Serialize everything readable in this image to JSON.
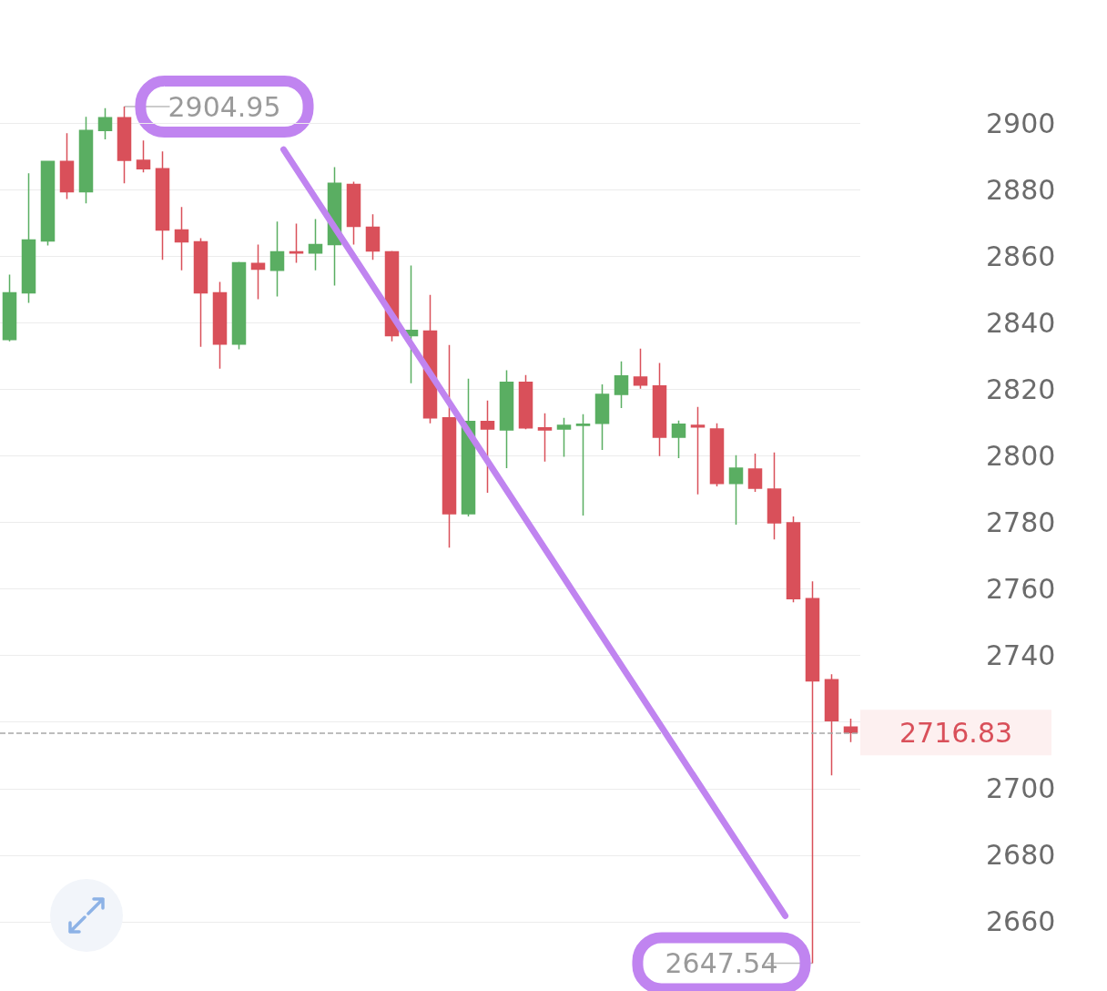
{
  "chart_data": {
    "type": "candlestick",
    "categories": [
      null,
      null,
      null,
      null,
      null,
      null,
      null,
      null,
      null,
      null,
      null,
      null,
      null,
      null,
      null,
      null,
      null,
      null,
      null,
      null,
      null,
      null,
      null,
      null,
      null,
      null,
      null,
      null,
      null,
      null,
      null,
      null,
      null,
      null,
      null,
      null,
      null,
      null,
      null,
      null,
      null,
      null,
      null,
      null,
      null
    ],
    "ohlc": [
      [
        2835.0,
        2854.5,
        2834.4,
        2849.0
      ],
      [
        2849.0,
        2884.9,
        2846.0,
        2864.9
      ],
      [
        2864.6,
        2888.5,
        2863.2,
        2888.5
      ],
      [
        2888.5,
        2897.0,
        2877.2,
        2879.4
      ],
      [
        2879.4,
        2901.9,
        2875.9,
        2897.8
      ],
      [
        2897.8,
        2904.5,
        2895.1,
        2901.6
      ],
      [
        2901.6,
        2904.95,
        2881.9,
        2888.8
      ],
      [
        2888.8,
        2894.8,
        2885.2,
        2886.3
      ],
      [
        2886.3,
        2891.5,
        2858.9,
        2867.9
      ],
      [
        2867.9,
        2874.8,
        2855.8,
        2864.3
      ],
      [
        2864.3,
        2865.4,
        2832.8,
        2849.0
      ],
      [
        2849.0,
        2852.3,
        2826.2,
        2833.6
      ],
      [
        2833.6,
        2858.3,
        2832.0,
        2858.0
      ],
      [
        2857.8,
        2863.5,
        2847.1,
        2856.1
      ],
      [
        2855.8,
        2870.4,
        2847.9,
        2861.3
      ],
      [
        2861.3,
        2869.8,
        2858.0,
        2861.0
      ],
      [
        2861.0,
        2871.2,
        2855.8,
        2863.5
      ],
      [
        2863.5,
        2886.8,
        2851.2,
        2881.9
      ],
      [
        2881.6,
        2882.4,
        2863.5,
        2869.0
      ],
      [
        2868.7,
        2872.6,
        2858.9,
        2861.6
      ],
      [
        2861.3,
        2861.6,
        2834.4,
        2836.1
      ],
      [
        2836.1,
        2857.2,
        2821.8,
        2837.7
      ],
      [
        2837.5,
        2848.4,
        2809.8,
        2811.4
      ],
      [
        2811.4,
        2833.3,
        2772.4,
        2782.6
      ],
      [
        2782.6,
        2823.2,
        2781.8,
        2810.3
      ],
      [
        2810.3,
        2816.6,
        2788.9,
        2808.1
      ],
      [
        2807.8,
        2825.7,
        2796.3,
        2822.1
      ],
      [
        2822.1,
        2824.3,
        2808.0,
        2808.4
      ],
      [
        2808.4,
        2812.8,
        2798.3,
        2807.8
      ],
      [
        2808.1,
        2811.4,
        2799.7,
        2809.2
      ],
      [
        2809.2,
        2812.5,
        2782.1,
        2809.5
      ],
      [
        2809.8,
        2821.5,
        2801.8,
        2818.5
      ],
      [
        2818.5,
        2828.4,
        2814.4,
        2824.0
      ],
      [
        2823.7,
        2832.2,
        2820.2,
        2821.3
      ],
      [
        2821.0,
        2827.9,
        2799.9,
        2805.6
      ],
      [
        2805.6,
        2810.6,
        2799.3,
        2809.5
      ],
      [
        2809.2,
        2814.7,
        2788.4,
        2808.7
      ],
      [
        2808.1,
        2809.8,
        2790.8,
        2791.7
      ],
      [
        2791.7,
        2800.2,
        2779.3,
        2796.3
      ],
      [
        2796.0,
        2800.7,
        2789.2,
        2790.3
      ],
      [
        2790.0,
        2801.0,
        2774.9,
        2779.9
      ],
      [
        2779.9,
        2781.8,
        2756.0,
        2757.1
      ],
      [
        2757.1,
        2762.3,
        2647.54,
        2732.4
      ],
      [
        2732.7,
        2734.4,
        2704.0,
        2720.4
      ],
      [
        2718.5,
        2721.0,
        2714.0,
        2716.83
      ]
    ],
    "ylim": [
      2640,
      2937
    ],
    "yticks": [
      2660,
      2680,
      2700,
      {
        "value": 2720,
        "label": null
      },
      2740,
      2760,
      2780,
      2800,
      2820,
      2840,
      2860,
      2880,
      2900
    ],
    "grid": "y",
    "tick_labels": "y",
    "annotations": [
      "2904.95",
      "2647.54"
    ],
    "ref_lines": [
      {
        "axis": "y",
        "value": 2716.83,
        "label": "2716.83",
        "color": "#a8a8a8",
        "line_style": "dashed"
      }
    ]
  }
}
